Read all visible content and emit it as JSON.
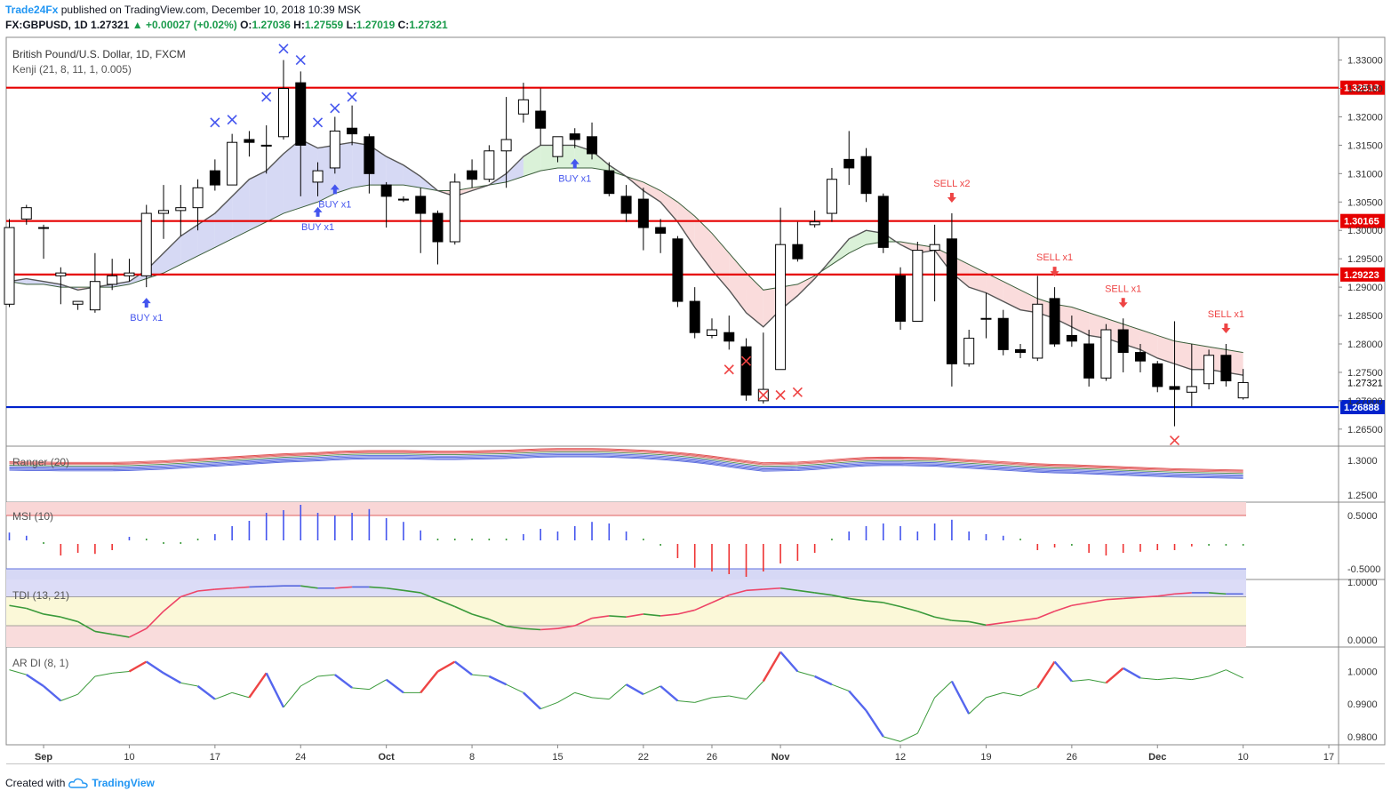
{
  "header": {
    "brand": "Trade24Fx",
    "published": "published on TradingView.com, December 10, 2018 10:39 MSK",
    "symbol": "FX:GBPUSD, 1D",
    "last": "1.27321",
    "change": "+0.00027 (+0.02%)",
    "o_label": "O:",
    "o": "1.27036",
    "h_label": "H:",
    "h": "1.27559",
    "l_label": "L:",
    "l": "1.27019",
    "c_label": "C:",
    "c": "1.27321"
  },
  "legend": {
    "main_title": "British Pound/U.S. Dollar, 1D, FXCM",
    "study": "Kenji (21, 8, 11, 1, 0.005)",
    "ranger": "Ranger (20)",
    "msi": "MSI (10)",
    "tdi": "TDI (13, 21)",
    "ardi": "AR DI (8, 1)"
  },
  "footer": {
    "created": "Created with",
    "tradingview": "TradingView"
  },
  "colors": {
    "up": "#ffffff",
    "down": "#000000",
    "level": "#e60000",
    "support": "#0022cc",
    "buy": "#4455ee",
    "sell": "#ee4444"
  },
  "chart_data": {
    "type": "candlestick",
    "x_labels": [
      "Sep",
      "10",
      "17",
      "24",
      "Oct",
      "8",
      "15",
      "22",
      "26",
      "Nov",
      "12",
      "19",
      "26",
      "Dec",
      "10",
      "17"
    ],
    "y_ticks": [
      "1.33000",
      "1.32500",
      "1.32000",
      "1.31500",
      "1.31000",
      "1.30500",
      "1.30000",
      "1.29500",
      "1.29000",
      "1.28500",
      "1.28000",
      "1.27500",
      "1.27000",
      "1.26500"
    ],
    "ylim": [
      1.262,
      1.334
    ],
    "levels": [
      {
        "value": 1.32513,
        "label": "1.32513",
        "color": "#e60000"
      },
      {
        "value": 1.30165,
        "label": "1.30165",
        "color": "#e60000"
      },
      {
        "value": 1.29223,
        "label": "1.29223",
        "color": "#e60000"
      },
      {
        "value": 1.26888,
        "label": "1.26888",
        "color": "#0022cc"
      }
    ],
    "last_price_label": "1.27321",
    "candles": [
      [
        0,
        1.287,
        1.3005,
        1.2865,
        1.302
      ],
      [
        1,
        1.302,
        1.304,
        1.301,
        1.3045
      ],
      [
        2,
        1.3005,
        1.3005,
        1.295,
        1.301
      ],
      [
        3,
        1.292,
        1.2925,
        1.287,
        1.2935
      ],
      [
        4,
        1.287,
        1.2875,
        1.286,
        1.287
      ],
      [
        5,
        1.286,
        1.291,
        1.2855,
        1.296
      ],
      [
        6,
        1.2905,
        1.292,
        1.2895,
        1.295
      ],
      [
        7,
        1.292,
        1.2925,
        1.291,
        1.295
      ],
      [
        8,
        1.292,
        1.303,
        1.29,
        1.3045
      ],
      [
        9,
        1.303,
        1.3035,
        1.2985,
        1.308
      ],
      [
        10,
        1.3035,
        1.304,
        1.299,
        1.308
      ],
      [
        11,
        1.304,
        1.3075,
        1.3,
        1.309
      ],
      [
        12,
        1.3105,
        1.308,
        1.307,
        1.3125
      ],
      [
        13,
        1.308,
        1.3155,
        1.308,
        1.317
      ],
      [
        14,
        1.316,
        1.3155,
        1.313,
        1.3175
      ],
      [
        15,
        1.315,
        1.315,
        1.31,
        1.3185
      ],
      [
        16,
        1.3165,
        1.325,
        1.316,
        1.33
      ],
      [
        17,
        1.326,
        1.315,
        1.306,
        1.328
      ],
      [
        18,
        1.3085,
        1.3105,
        1.306,
        1.312
      ],
      [
        19,
        1.311,
        1.3175,
        1.31,
        1.32
      ],
      [
        20,
        1.318,
        1.317,
        1.315,
        1.322
      ],
      [
        21,
        1.3165,
        1.31,
        1.3065,
        1.317
      ],
      [
        22,
        1.308,
        1.306,
        1.3005,
        1.3085
      ],
      [
        23,
        1.3055,
        1.3055,
        1.305,
        1.306
      ],
      [
        24,
        1.306,
        1.303,
        1.296,
        1.3075
      ],
      [
        25,
        1.303,
        1.298,
        1.294,
        1.3035
      ],
      [
        26,
        1.298,
        1.3085,
        1.2975,
        1.31
      ],
      [
        27,
        1.3105,
        1.309,
        1.3075,
        1.3125
      ],
      [
        28,
        1.309,
        1.314,
        1.3085,
        1.315
      ],
      [
        29,
        1.314,
        1.316,
        1.3075,
        1.3235
      ],
      [
        30,
        1.3205,
        1.323,
        1.319,
        1.326
      ],
      [
        31,
        1.321,
        1.318,
        1.315,
        1.325
      ],
      [
        32,
        1.313,
        1.3165,
        1.312,
        1.3165
      ],
      [
        33,
        1.317,
        1.316,
        1.3145,
        1.318
      ],
      [
        34,
        1.3165,
        1.3135,
        1.3125,
        1.319
      ],
      [
        35,
        1.3105,
        1.3065,
        1.306,
        1.312
      ],
      [
        36,
        1.306,
        1.303,
        1.3015,
        1.308
      ],
      [
        37,
        1.3055,
        1.3005,
        1.2965,
        1.3075
      ],
      [
        38,
        1.3005,
        1.2995,
        1.296,
        1.302
      ],
      [
        39,
        1.2985,
        1.2875,
        1.2865,
        1.299
      ],
      [
        40,
        1.2875,
        1.282,
        1.281,
        1.29
      ],
      [
        41,
        1.2815,
        1.2825,
        1.281,
        1.2845
      ],
      [
        42,
        1.282,
        1.2805,
        1.279,
        1.285
      ],
      [
        43,
        1.2795,
        1.271,
        1.27,
        1.281
      ],
      [
        44,
        1.27,
        1.272,
        1.2695,
        1.282
      ],
      [
        45,
        1.2755,
        1.2975,
        1.2755,
        1.304
      ],
      [
        46,
        1.2975,
        1.295,
        1.2945,
        1.3015
      ],
      [
        47,
        1.301,
        1.3015,
        1.3005,
        1.3035
      ],
      [
        48,
        1.303,
        1.309,
        1.3015,
        1.311
      ],
      [
        49,
        1.3125,
        1.311,
        1.308,
        1.3175
      ],
      [
        50,
        1.313,
        1.3065,
        1.305,
        1.3145
      ],
      [
        51,
        1.306,
        1.297,
        1.296,
        1.3065
      ],
      [
        52,
        1.292,
        1.284,
        1.2825,
        1.2935
      ],
      [
        53,
        1.284,
        1.2965,
        1.284,
        1.298
      ],
      [
        54,
        1.2965,
        1.2975,
        1.2875,
        1.301
      ],
      [
        55,
        1.2985,
        1.2765,
        1.2725,
        1.303
      ],
      [
        56,
        1.2765,
        1.281,
        1.276,
        1.2825
      ],
      [
        57,
        1.2845,
        1.2845,
        1.281,
        1.289
      ],
      [
        58,
        1.2845,
        1.279,
        1.278,
        1.286
      ],
      [
        59,
        1.279,
        1.2785,
        1.2775,
        1.28
      ],
      [
        60,
        1.2775,
        1.287,
        1.277,
        1.292
      ],
      [
        61,
        1.288,
        1.28,
        1.2795,
        1.29
      ],
      [
        62,
        1.2815,
        1.2805,
        1.2795,
        1.285
      ],
      [
        63,
        1.28,
        1.274,
        1.2725,
        1.2825
      ],
      [
        64,
        1.274,
        1.2825,
        1.2735,
        1.2835
      ],
      [
        65,
        1.2825,
        1.2785,
        1.275,
        1.2845
      ],
      [
        66,
        1.2785,
        1.277,
        1.275,
        1.28
      ],
      [
        67,
        1.2765,
        1.2725,
        1.2715,
        1.277
      ],
      [
        68,
        1.2725,
        1.272,
        1.2655,
        1.284
      ],
      [
        69,
        1.2715,
        1.2725,
        1.269,
        1.28
      ],
      [
        70,
        1.273,
        1.278,
        1.272,
        1.279
      ],
      [
        71,
        1.278,
        1.2735,
        1.2725,
        1.28
      ],
      [
        72,
        1.2705,
        1.2732,
        1.2702,
        1.2756
      ]
    ],
    "kenji_fast": [
      1.291,
      1.2915,
      1.291,
      1.2905,
      1.2895,
      1.29,
      1.2905,
      1.291,
      1.293,
      1.296,
      1.299,
      1.301,
      1.303,
      1.306,
      1.309,
      1.3105,
      1.3135,
      1.316,
      1.3145,
      1.315,
      1.3155,
      1.315,
      1.313,
      1.3115,
      1.3095,
      1.307,
      1.306,
      1.307,
      1.308,
      1.31,
      1.313,
      1.315,
      1.315,
      1.315,
      1.314,
      1.3115,
      1.3095,
      1.307,
      1.305,
      1.3015,
      1.297,
      1.293,
      1.2895,
      1.2855,
      1.283,
      1.286,
      1.2885,
      1.2915,
      1.295,
      1.2985,
      1.3,
      1.2995,
      1.2975,
      1.296,
      1.2965,
      1.2925,
      1.29,
      1.289,
      1.2875,
      1.286,
      1.2855,
      1.2845,
      1.283,
      1.2815,
      1.281,
      1.28,
      1.279,
      1.2775,
      1.2765,
      1.2755,
      1.2755,
      1.275,
      1.2745
    ],
    "kenji_slow": [
      1.291,
      1.2905,
      1.2905,
      1.29,
      1.29,
      1.29,
      1.29,
      1.2905,
      1.2915,
      1.2925,
      1.294,
      1.2955,
      1.297,
      1.2985,
      1.3,
      1.3015,
      1.303,
      1.304,
      1.305,
      1.3065,
      1.3075,
      1.308,
      1.308,
      1.308,
      1.3075,
      1.307,
      1.307,
      1.3075,
      1.308,
      1.3085,
      1.3095,
      1.3105,
      1.311,
      1.311,
      1.311,
      1.3105,
      1.3095,
      1.3085,
      1.307,
      1.305,
      1.3025,
      1.2995,
      1.296,
      1.2925,
      1.2895,
      1.29,
      1.2905,
      1.292,
      1.294,
      1.296,
      1.2975,
      1.298,
      1.298,
      1.2975,
      1.297,
      1.2955,
      1.294,
      1.2925,
      1.291,
      1.2895,
      1.288,
      1.287,
      1.2865,
      1.2855,
      1.2845,
      1.2835,
      1.2825,
      1.2815,
      1.2805,
      1.28,
      1.2795,
      1.279,
      1.2785
    ],
    "buy_signals": [
      {
        "i": 8,
        "label": "BUY x1"
      },
      {
        "i": 18,
        "label": "BUY x1"
      },
      {
        "i": 19,
        "label": "BUY x1"
      },
      {
        "i": 33,
        "label": "BUY x1"
      }
    ],
    "sell_signals": [
      {
        "i": 55,
        "label": "SELL x2"
      },
      {
        "i": 61,
        "label": "SELL x1"
      },
      {
        "i": 65,
        "label": "SELL x1"
      },
      {
        "i": 71,
        "label": "SELL x1"
      }
    ],
    "x_marks_blue": [
      [
        12,
        1.319
      ],
      [
        13,
        1.3195
      ],
      [
        15,
        1.3235
      ],
      [
        16,
        1.332
      ],
      [
        17,
        1.33
      ],
      [
        18,
        1.319
      ],
      [
        19,
        1.3215
      ],
      [
        20,
        1.3235
      ]
    ],
    "x_marks_red": [
      [
        42,
        1.2755
      ],
      [
        43,
        1.277
      ],
      [
        44,
        1.271
      ],
      [
        45,
        1.271
      ],
      [
        46,
        1.2715
      ],
      [
        68,
        1.263
      ]
    ],
    "ranger": {
      "ylim": [
        1.245,
        1.315
      ],
      "ticks": [
        "1.3000",
        "1.2500"
      ]
    },
    "msi": {
      "ylim": [
        -0.7,
        0.75
      ],
      "ticks": [
        "0.5000",
        "-0.5000"
      ],
      "values": [
        0.18,
        0.12,
        0,
        -0.25,
        -0.2,
        -0.22,
        -0.15,
        0.1,
        0.05,
        0,
        0,
        0.05,
        0.15,
        0.3,
        0.4,
        0.55,
        0.6,
        0.7,
        0.55,
        0.5,
        0.55,
        0.62,
        0.45,
        0.38,
        0.22,
        0.05,
        0.03,
        0.05,
        0.05,
        0.05,
        0.15,
        0.25,
        0.2,
        0.3,
        0.38,
        0.35,
        0.2,
        0.05,
        -0.05,
        -0.3,
        -0.48,
        -0.55,
        -0.6,
        -0.65,
        -0.55,
        -0.4,
        -0.35,
        -0.2,
        0.05,
        0.2,
        0.3,
        0.35,
        0.3,
        0.2,
        0.35,
        0.42,
        0.2,
        0.15,
        0.12,
        0.05,
        -0.15,
        -0.1,
        -0.05,
        -0.2,
        -0.25,
        -0.2,
        -0.18,
        -0.15,
        -0.15,
        -0.08,
        -0.05,
        -0.05,
        -0.03
      ]
    },
    "tdi": {
      "ylim": [
        -0.12,
        1.05
      ],
      "ticks": [
        "1.0000",
        "0.0000"
      ],
      "values": [
        0.6,
        0.55,
        0.45,
        0.4,
        0.32,
        0.15,
        0.1,
        0.05,
        0.2,
        0.5,
        0.75,
        0.85,
        0.88,
        0.9,
        0.92,
        0.93,
        0.94,
        0.94,
        0.9,
        0.9,
        0.92,
        0.92,
        0.9,
        0.86,
        0.82,
        0.7,
        0.58,
        0.45,
        0.36,
        0.24,
        0.2,
        0.18,
        0.2,
        0.25,
        0.38,
        0.42,
        0.4,
        0.45,
        0.42,
        0.45,
        0.52,
        0.65,
        0.78,
        0.86,
        0.88,
        0.9,
        0.86,
        0.82,
        0.78,
        0.72,
        0.68,
        0.65,
        0.58,
        0.5,
        0.4,
        0.34,
        0.32,
        0.26,
        0.3,
        0.34,
        0.38,
        0.5,
        0.6,
        0.65,
        0.7,
        0.72,
        0.74,
        0.76,
        0.8,
        0.82,
        0.82,
        0.8,
        0.8
      ]
    },
    "ardi": {
      "ylim": [
        0.9775,
        1.0075
      ],
      "ticks": [
        "1.0000",
        "0.9900",
        "0.9800"
      ],
      "values": [
        1.0005,
        0.999,
        0.9955,
        0.991,
        0.993,
        0.9985,
        0.9995,
        1.0,
        1.003,
        0.9995,
        0.9965,
        0.9955,
        0.9915,
        0.9935,
        0.992,
        0.9995,
        0.989,
        0.9955,
        0.9985,
        0.999,
        0.995,
        0.9945,
        0.9975,
        0.9935,
        0.9935,
        1.0,
        1.003,
        0.999,
        0.9985,
        0.996,
        0.9935,
        0.9885,
        0.9905,
        0.9935,
        0.992,
        0.9915,
        0.996,
        0.993,
        0.9955,
        0.991,
        0.9905,
        0.992,
        0.9925,
        0.9915,
        0.997,
        1.006,
        1.0,
        0.9985,
        0.996,
        0.994,
        0.988,
        0.98,
        0.9785,
        0.981,
        0.992,
        0.997,
        0.987,
        0.992,
        0.9935,
        0.9925,
        0.995,
        1.003,
        0.997,
        0.9975,
        0.9965,
        1.001,
        0.998,
        0.9975,
        0.998,
        0.9975,
        0.9985,
        1.0005,
        0.998
      ]
    }
  }
}
